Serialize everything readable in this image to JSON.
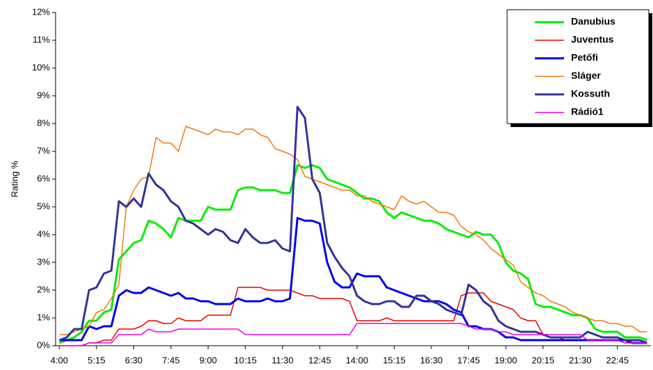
{
  "chart_data": {
    "type": "line",
    "y_label": "Rating %",
    "categories": [
      "4:00",
      null,
      null,
      null,
      null,
      "5:15",
      null,
      null,
      null,
      null,
      "6:30",
      null,
      null,
      null,
      null,
      "7:45",
      null,
      null,
      null,
      null,
      "9:00",
      null,
      null,
      null,
      null,
      "10:15",
      null,
      null,
      null,
      null,
      "11:30",
      null,
      null,
      null,
      null,
      "12:45",
      null,
      null,
      null,
      null,
      "14:00",
      null,
      null,
      null,
      null,
      "15:15",
      null,
      null,
      null,
      null,
      "16:30",
      null,
      null,
      null,
      null,
      "17:45",
      null,
      null,
      null,
      null,
      "19:00",
      null,
      null,
      null,
      null,
      "20:15",
      null,
      null,
      null,
      null,
      "21:30",
      null,
      null,
      null,
      null,
      "22:45",
      null,
      null,
      null,
      null
    ],
    "ylim": [
      0,
      12
    ],
    "yticks": [
      {
        "value": 0,
        "label": "0%"
      },
      {
        "value": 1,
        "label": "1%"
      },
      {
        "value": 2,
        "label": "2%"
      },
      {
        "value": 3,
        "label": "3%"
      },
      {
        "value": 4,
        "label": "4%"
      },
      {
        "value": 5,
        "label": "5%"
      },
      {
        "value": 6,
        "label": "6%"
      },
      {
        "value": 7,
        "label": "7%"
      },
      {
        "value": 8,
        "label": "8%"
      },
      {
        "value": 9,
        "label": "9%"
      },
      {
        "value": 10,
        "label": "10%"
      },
      {
        "value": 11,
        "label": "11%"
      },
      {
        "value": 12,
        "label": "12%"
      }
    ],
    "legend": "upper right",
    "series": [
      {
        "name": "Danubius",
        "color": "#00ee00",
        "line_width": 3,
        "values": [
          0.1,
          0.2,
          0.3,
          0.5,
          0.9,
          0.9,
          1.2,
          1.3,
          3.1,
          3.4,
          3.7,
          3.8,
          4.5,
          4.4,
          4.2,
          3.9,
          4.6,
          4.5,
          4.5,
          4.5,
          5.0,
          4.9,
          4.9,
          4.9,
          5.6,
          5.7,
          5.7,
          5.6,
          5.6,
          5.6,
          5.5,
          5.5,
          6.5,
          6.4,
          6.5,
          6.4,
          6.0,
          5.9,
          5.8,
          5.7,
          5.5,
          5.3,
          5.3,
          5.2,
          4.8,
          4.6,
          4.8,
          4.7,
          4.6,
          4.5,
          4.5,
          4.4,
          4.2,
          4.1,
          4.0,
          3.9,
          4.1,
          4.0,
          4.0,
          3.7,
          3.0,
          2.7,
          2.6,
          2.4,
          1.5,
          1.4,
          1.4,
          1.3,
          1.2,
          1.1,
          1.1,
          1.0,
          0.6,
          0.5,
          0.5,
          0.5,
          0.3,
          0.3,
          0.3,
          0.2
        ]
      },
      {
        "name": "Juventus",
        "color": "#ee0000",
        "line_width": 1.5,
        "values": [
          0.0,
          0.0,
          0.0,
          0.0,
          0.1,
          0.1,
          0.2,
          0.2,
          0.6,
          0.6,
          0.6,
          0.7,
          0.9,
          0.9,
          0.8,
          0.8,
          1.0,
          0.9,
          0.9,
          0.9,
          1.1,
          1.1,
          1.1,
          1.1,
          2.1,
          2.1,
          2.1,
          2.1,
          2.0,
          2.0,
          2.0,
          2.0,
          1.9,
          1.8,
          1.8,
          1.7,
          1.7,
          1.7,
          1.7,
          1.6,
          0.9,
          0.9,
          0.9,
          0.9,
          1.0,
          0.9,
          0.9,
          0.9,
          0.9,
          0.9,
          0.9,
          0.9,
          0.9,
          0.9,
          1.8,
          1.9,
          1.9,
          1.9,
          1.6,
          1.5,
          1.4,
          1.3,
          1.0,
          0.9,
          0.9,
          0.4,
          0.3,
          0.3,
          0.2,
          0.2,
          0.2,
          0.2,
          0.2,
          0.2,
          0.2,
          0.2,
          0.1,
          0.1,
          0.1,
          0.1
        ]
      },
      {
        "name": "Petőfi",
        "color": "#0000ee",
        "line_width": 3,
        "values": [
          0.2,
          0.2,
          0.2,
          0.2,
          0.7,
          0.6,
          0.7,
          0.7,
          1.8,
          2.0,
          1.9,
          1.9,
          2.1,
          2.0,
          1.9,
          1.8,
          1.9,
          1.7,
          1.7,
          1.6,
          1.6,
          1.5,
          1.5,
          1.5,
          1.7,
          1.6,
          1.6,
          1.6,
          1.7,
          1.6,
          1.6,
          1.7,
          4.6,
          4.5,
          4.5,
          4.4,
          3.0,
          2.3,
          2.1,
          2.1,
          2.6,
          2.5,
          2.5,
          2.5,
          2.1,
          2.0,
          1.9,
          1.8,
          1.7,
          1.6,
          1.6,
          1.6,
          1.5,
          1.3,
          1.2,
          0.7,
          0.7,
          0.6,
          0.6,
          0.5,
          0.3,
          0.3,
          0.2,
          0.2,
          0.2,
          0.2,
          0.2,
          0.2,
          0.2,
          0.2,
          0.2,
          0.2,
          0.2,
          0.2,
          0.2,
          0.2,
          0.2,
          0.1,
          0.1,
          0.1
        ]
      },
      {
        "name": "Sláger",
        "color": "#f07a10",
        "line_width": 1.5,
        "values": [
          0.4,
          0.4,
          0.5,
          0.6,
          0.7,
          1.2,
          1.3,
          1.7,
          2.2,
          5.0,
          5.6,
          6.0,
          6.1,
          7.5,
          7.3,
          7.3,
          7.0,
          7.9,
          7.8,
          7.7,
          7.6,
          7.8,
          7.7,
          7.7,
          7.6,
          7.8,
          7.8,
          7.6,
          7.5,
          7.1,
          7.0,
          6.9,
          6.7,
          6.1,
          6.0,
          5.9,
          5.8,
          5.7,
          5.6,
          5.6,
          5.4,
          5.4,
          5.2,
          5.1,
          5.0,
          4.9,
          5.4,
          5.2,
          5.1,
          5.2,
          5.0,
          4.8,
          4.8,
          4.7,
          4.3,
          4.1,
          4.0,
          3.8,
          3.5,
          3.3,
          3.1,
          2.9,
          2.3,
          2.1,
          1.9,
          1.8,
          1.6,
          1.5,
          1.4,
          1.2,
          1.1,
          1.0,
          0.9,
          0.9,
          0.8,
          0.8,
          0.7,
          0.7,
          0.5,
          0.5
        ]
      },
      {
        "name": "Kossuth",
        "color": "#333399",
        "line_width": 3,
        "values": [
          0.2,
          0.3,
          0.6,
          0.6,
          2.0,
          2.1,
          2.6,
          2.7,
          5.2,
          5.0,
          5.3,
          5.0,
          6.2,
          5.8,
          5.6,
          5.2,
          5.0,
          4.5,
          4.4,
          4.2,
          4.0,
          4.2,
          4.1,
          3.8,
          3.7,
          4.2,
          3.9,
          3.7,
          3.7,
          3.8,
          3.5,
          3.4,
          8.6,
          8.2,
          6.0,
          5.5,
          3.7,
          3.2,
          2.8,
          2.5,
          1.8,
          1.6,
          1.5,
          1.5,
          1.6,
          1.6,
          1.4,
          1.4,
          1.8,
          1.8,
          1.6,
          1.5,
          1.3,
          1.2,
          1.1,
          2.2,
          2.0,
          1.6,
          1.4,
          0.9,
          0.7,
          0.6,
          0.5,
          0.5,
          0.5,
          0.4,
          0.3,
          0.3,
          0.3,
          0.3,
          0.3,
          0.5,
          0.4,
          0.3,
          0.3,
          0.3,
          0.2,
          0.2,
          0.2,
          0.1
        ]
      },
      {
        "name": "Rádió1",
        "color": "#ee00ee",
        "line_width": 1.5,
        "values": [
          0.0,
          0.0,
          0.0,
          0.0,
          0.1,
          0.1,
          0.1,
          0.1,
          0.4,
          0.4,
          0.4,
          0.4,
          0.6,
          0.5,
          0.5,
          0.5,
          0.6,
          0.6,
          0.6,
          0.6,
          0.6,
          0.6,
          0.6,
          0.6,
          0.6,
          0.4,
          0.4,
          0.4,
          0.4,
          0.4,
          0.4,
          0.4,
          0.4,
          0.4,
          0.4,
          0.4,
          0.4,
          0.4,
          0.4,
          0.4,
          0.8,
          0.8,
          0.8,
          0.8,
          0.8,
          0.8,
          0.8,
          0.8,
          0.8,
          0.8,
          0.8,
          0.8,
          0.8,
          0.8,
          0.8,
          0.7,
          0.6,
          0.6,
          0.6,
          0.5,
          0.5,
          0.4,
          0.4,
          0.4,
          0.4,
          0.4,
          0.4,
          0.4,
          0.4,
          0.4,
          0.4,
          0.2,
          0.2,
          0.2,
          0.2,
          0.2,
          0.1,
          0.1,
          0.1,
          0.1
        ]
      }
    ]
  }
}
